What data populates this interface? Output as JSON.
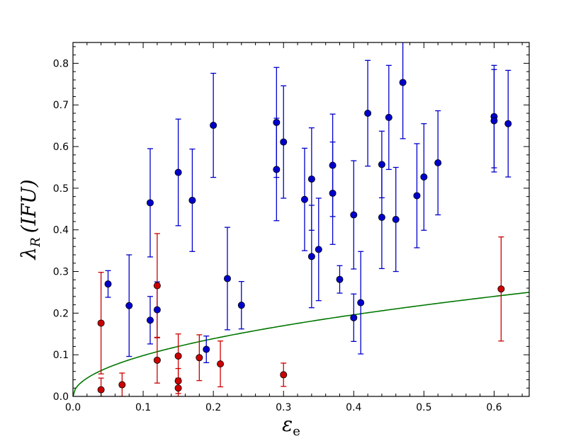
{
  "chart_data": {
    "type": "scatter",
    "title": "",
    "xlabel": "ε",
    "xlabel_sub": "e",
    "ylabel": "λ",
    "ylabel_sub": "R",
    "ylabel_suffix": "(IFU)",
    "xlim": [
      0.0,
      0.65
    ],
    "ylim": [
      0.0,
      0.85
    ],
    "xticks": [
      "0.0",
      "0.1",
      "0.2",
      "0.3",
      "0.4",
      "0.5",
      "0.6"
    ],
    "yticks": [
      "0.0",
      "0.1",
      "0.2",
      "0.3",
      "0.4",
      "0.5",
      "0.6",
      "0.7",
      "0.8"
    ],
    "grid": false,
    "series": [
      {
        "color": "#0000cc",
        "points": [
          {
            "x": 0.05,
            "y": 0.27,
            "err": 0.032
          },
          {
            "x": 0.08,
            "y": 0.218,
            "err": 0.122
          },
          {
            "x": 0.11,
            "y": 0.465,
            "err": 0.13
          },
          {
            "x": 0.11,
            "y": 0.183,
            "err": 0.057
          },
          {
            "x": 0.12,
            "y": 0.208,
            "err": 0.067
          },
          {
            "x": 0.15,
            "y": 0.538,
            "err": 0.128
          },
          {
            "x": 0.17,
            "y": 0.471,
            "err": 0.123
          },
          {
            "x": 0.19,
            "y": 0.113,
            "err": 0.032
          },
          {
            "x": 0.2,
            "y": 0.651,
            "err": 0.125
          },
          {
            "x": 0.22,
            "y": 0.283,
            "err": 0.123
          },
          {
            "x": 0.24,
            "y": 0.219,
            "err": 0.057
          },
          {
            "x": 0.29,
            "y": 0.658,
            "err": 0.132
          },
          {
            "x": 0.29,
            "y": 0.545,
            "err": 0.123
          },
          {
            "x": 0.3,
            "y": 0.611,
            "err": 0.135
          },
          {
            "x": 0.33,
            "y": 0.473,
            "err": 0.123
          },
          {
            "x": 0.34,
            "y": 0.522,
            "err": 0.123
          },
          {
            "x": 0.34,
            "y": 0.336,
            "err": 0.123
          },
          {
            "x": 0.35,
            "y": 0.353,
            "err": 0.123
          },
          {
            "x": 0.37,
            "y": 0.555,
            "err": 0.123
          },
          {
            "x": 0.37,
            "y": 0.488,
            "err": 0.123
          },
          {
            "x": 0.38,
            "y": 0.281,
            "err": 0.033
          },
          {
            "x": 0.4,
            "y": 0.436,
            "err": 0.13
          },
          {
            "x": 0.4,
            "y": 0.189,
            "err": 0.057
          },
          {
            "x": 0.41,
            "y": 0.225,
            "err": 0.123
          },
          {
            "x": 0.42,
            "y": 0.68,
            "err": 0.127
          },
          {
            "x": 0.44,
            "y": 0.557,
            "err": 0.08
          },
          {
            "x": 0.44,
            "y": 0.43,
            "err": 0.123
          },
          {
            "x": 0.45,
            "y": 0.67,
            "err": 0.125
          },
          {
            "x": 0.46,
            "y": 0.425,
            "err": 0.125
          },
          {
            "x": 0.47,
            "y": 0.754,
            "err": 0.135
          },
          {
            "x": 0.49,
            "y": 0.482,
            "err": 0.125
          },
          {
            "x": 0.5,
            "y": 0.527,
            "err": 0.128
          },
          {
            "x": 0.52,
            "y": 0.561,
            "err": 0.125
          },
          {
            "x": 0.6,
            "y": 0.672,
            "err": 0.123
          },
          {
            "x": 0.6,
            "y": 0.662,
            "err": 0.123
          },
          {
            "x": 0.62,
            "y": 0.655,
            "err": 0.128
          }
        ]
      },
      {
        "color": "#cc0000",
        "points": [
          {
            "x": 0.04,
            "y": 0.176,
            "err": 0.122
          },
          {
            "x": 0.04,
            "y": 0.016,
            "err": 0.028
          },
          {
            "x": 0.07,
            "y": 0.028,
            "err": 0.028
          },
          {
            "x": 0.12,
            "y": 0.266,
            "err": 0.125
          },
          {
            "x": 0.12,
            "y": 0.087,
            "err": 0.055
          },
          {
            "x": 0.15,
            "y": 0.097,
            "err": 0.053
          },
          {
            "x": 0.15,
            "y": 0.037,
            "err": 0.03
          },
          {
            "x": 0.15,
            "y": 0.02,
            "err": 0.02
          },
          {
            "x": 0.18,
            "y": 0.093,
            "err": 0.055
          },
          {
            "x": 0.21,
            "y": 0.078,
            "err": 0.055
          },
          {
            "x": 0.3,
            "y": 0.052,
            "err": 0.028
          },
          {
            "x": 0.61,
            "y": 0.258,
            "err": 0.125
          }
        ]
      }
    ],
    "curve": {
      "color": "#007700",
      "formula": "0.31*sqrt(x)",
      "xrange": [
        0.0,
        0.65
      ]
    }
  }
}
